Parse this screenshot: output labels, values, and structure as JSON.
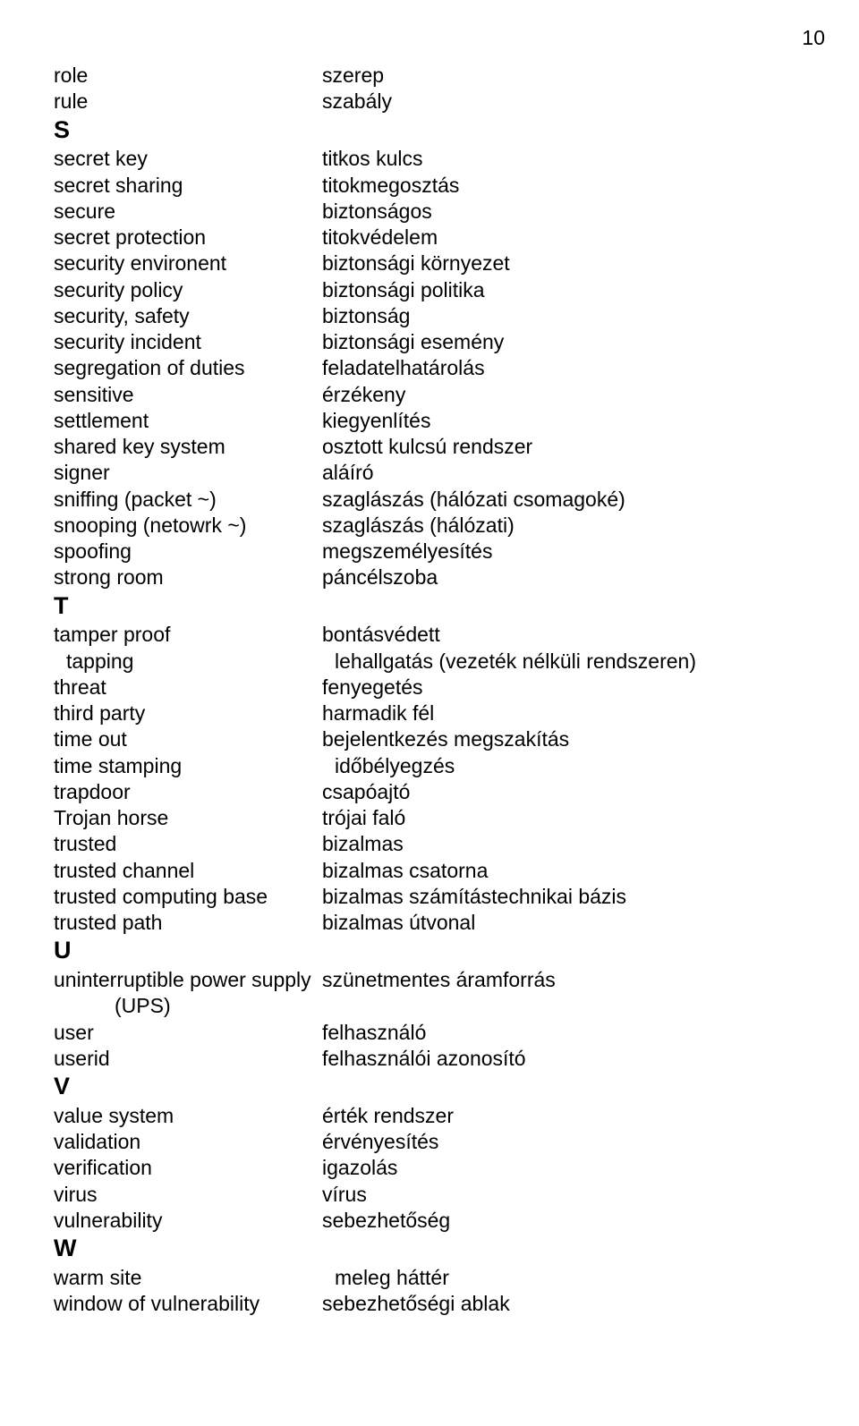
{
  "page_number": "10",
  "sections": [
    {
      "letter": null,
      "rows": [
        {
          "en": "role",
          "hu": "szerep"
        },
        {
          "en": "rule",
          "hu": "szabály"
        }
      ]
    },
    {
      "letter": "S",
      "rows": [
        {
          "en": "secret key",
          "hu": "titkos kulcs"
        },
        {
          "en": "secret sharing",
          "hu": "titokmegosztás"
        },
        {
          "en": "secure",
          "hu": "biztonságos"
        },
        {
          "en": "secret protection",
          "hu": "titokvédelem"
        },
        {
          "en": "security environent",
          "hu": "biztonsági környezet"
        },
        {
          "en": "security policy",
          "hu": "biztonsági politika"
        },
        {
          "en": "security, safety",
          "hu": "biztonság"
        },
        {
          "en": "security incident",
          "hu": "biztonsági esemény"
        },
        {
          "en": "segregation of duties",
          "hu": "feladatelhatárolás"
        },
        {
          "en": "sensitive",
          "hu": "érzékeny"
        },
        {
          "en": "settlement",
          "hu": "kiegyenlítés"
        },
        {
          "en": "shared key system",
          "hu": "osztott kulcsú rendszer"
        },
        {
          "en": "signer",
          "hu": "aláíró"
        },
        {
          "en": "sniffing (packet ~)",
          "hu": "szaglászás (hálózati csomagoké)"
        },
        {
          "en": "snooping (netowrk ~)",
          "hu": "szaglászás (hálózati)"
        },
        {
          "en": "spoofing",
          "hu": "megszemélyesítés"
        },
        {
          "en": "strong room",
          "hu": "páncélszoba"
        }
      ]
    },
    {
      "letter": "T",
      "rows": [
        {
          "en": "tamper proof",
          "hu": "bontásvédett"
        },
        {
          "en": "tapping",
          "hu": "lehallgatás (vezeték nélküli rendszeren)",
          "enIndent": true
        },
        {
          "en": "threat",
          "hu": "fenyegetés"
        },
        {
          "en": "third party",
          "hu": "harmadik fél"
        },
        {
          "en": "time out",
          "hu": "bejelentkezés megszakítás"
        },
        {
          "en": "time stamping",
          "hu": "időbélyegzés",
          "huIndent": true
        },
        {
          "en": "trapdoor",
          "hu": "csapóajtó"
        },
        {
          "en": "Trojan horse",
          "hu": "trójai faló"
        },
        {
          "en": "trusted",
          "hu": "bizalmas"
        },
        {
          "en": "trusted channel",
          "hu": "bizalmas csatorna"
        },
        {
          "en": "trusted computing base",
          "hu": "bizalmas számítástechnikai bázis"
        },
        {
          "en": "trusted path",
          "hu": "bizalmas útvonal"
        }
      ]
    },
    {
      "letter": "U",
      "rows": [
        {
          "en": "uninterruptible power supply",
          "hu": "szünetmentes áramforrás"
        },
        {
          "en": "(UPS)",
          "hu": "",
          "enIndent2": true
        },
        {
          "en": "user",
          "hu": "felhasználó"
        },
        {
          "en": "userid",
          "hu": "felhasználói azonosító"
        }
      ]
    },
    {
      "letter": "V",
      "rows": [
        {
          "en": "value system",
          "hu": "érték rendszer"
        },
        {
          "en": "validation",
          "hu": "érvényesítés"
        },
        {
          "en": "verification",
          "hu": "igazolás"
        },
        {
          "en": "virus",
          "hu": "vírus"
        },
        {
          "en": "vulnerability",
          "hu": "sebezhetőség"
        }
      ]
    },
    {
      "letter": "W",
      "rows": [
        {
          "en": "warm site",
          "hu": "meleg háttér",
          "huIndent": true
        },
        {
          "en": "window  of vulnerability",
          "hu": "sebezhetőségi ablak"
        }
      ]
    }
  ]
}
